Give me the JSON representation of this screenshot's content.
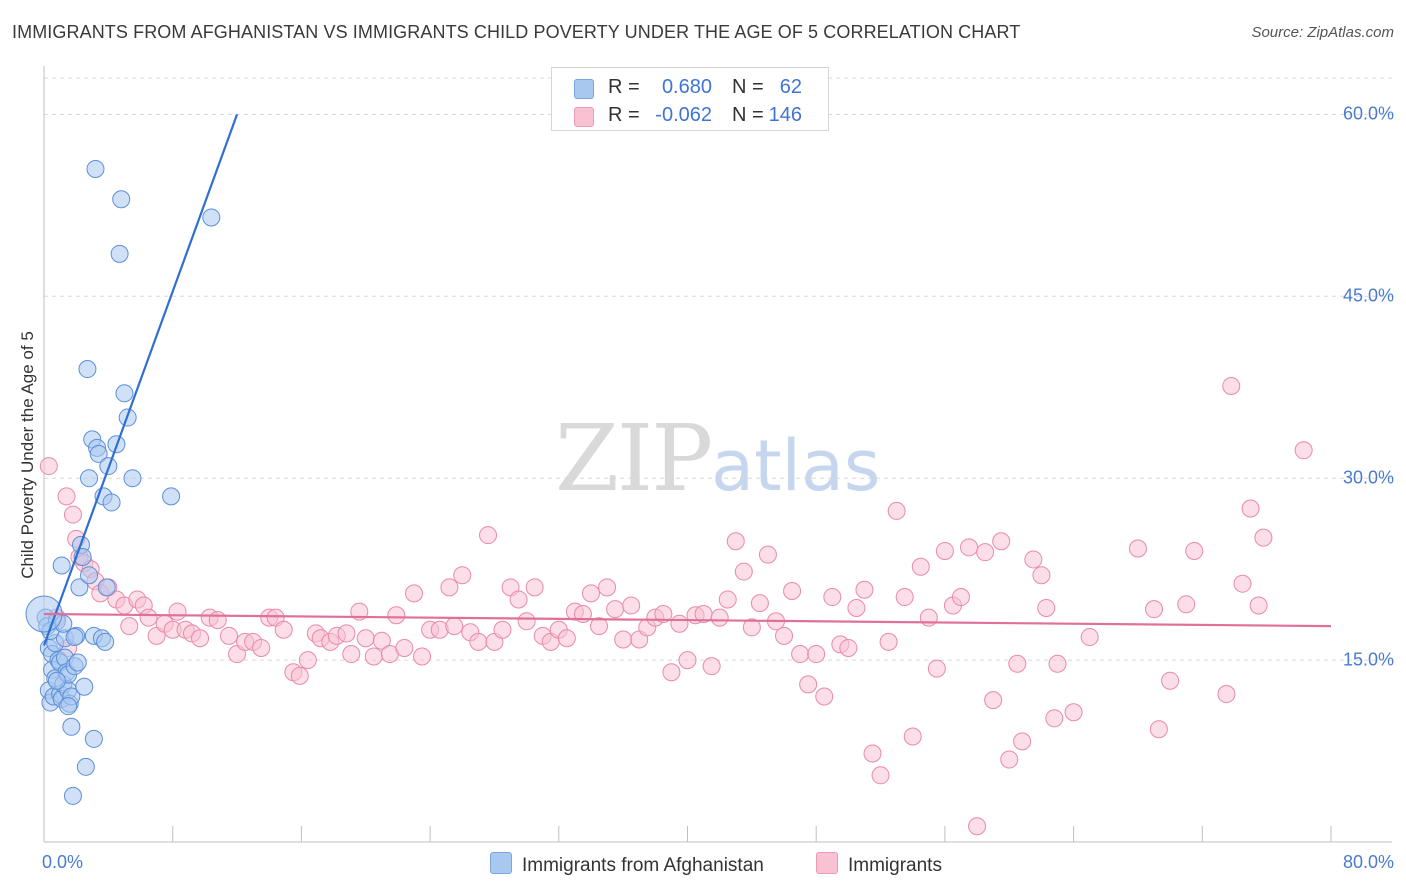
{
  "header": {
    "title": "IMMIGRANTS FROM AFGHANISTAN VS IMMIGRANTS CHILD POVERTY UNDER THE AGE OF 5 CORRELATION CHART",
    "source": "Source: ZipAtlas.com"
  },
  "watermark": {
    "zip": "ZIP",
    "atlas": "atlas"
  },
  "legend": {
    "rows": [
      {
        "r_label": "R =",
        "r_value": "0.680",
        "n_label": "N =",
        "n_value": "62",
        "color": "#a9c8f0"
      },
      {
        "r_label": "R =",
        "r_value": "-0.062",
        "n_label": "N =",
        "n_value": "146",
        "color": "#f6b9cc"
      }
    ]
  },
  "colors": {
    "blue_fill": "#a9c8f0",
    "blue_stroke": "#5b8fd8",
    "blue_line": "#2f6fd0",
    "pink_fill": "#f8c2d3",
    "pink_stroke": "#e98aa8",
    "pink_line": "#e0709a",
    "tick_text": "#4a7bd0",
    "grid": "#d8d8d8"
  },
  "chart_data": {
    "type": "scatter",
    "title": "IMMIGRANTS FROM AFGHANISTAN VS IMMIGRANTS CHILD POVERTY UNDER THE AGE OF 5 CORRELATION CHART",
    "xlabel": "",
    "ylabel": "Child Poverty Under the Age of 5",
    "xlim": [
      0,
      80
    ],
    "ylim": [
      0,
      63
    ],
    "y_ticks": [
      15,
      30,
      45,
      60
    ],
    "y_tick_labels": [
      "15.0%",
      "30.0%",
      "45.0%",
      "60.0%"
    ],
    "x_tick_labels": [
      "0.0%",
      "80.0%"
    ],
    "grid": true,
    "series": [
      {
        "name": "Immigrants from Afghanistan",
        "color": "blue",
        "trend": {
          "x0": 0.0,
          "y0": 16.2,
          "x1": 12.0,
          "y1": 60.0
        },
        "points": [
          [
            0.1,
            18.5
          ],
          [
            0.2,
            17.8
          ],
          [
            0.3,
            16.0
          ],
          [
            0.3,
            12.5
          ],
          [
            0.4,
            11.5
          ],
          [
            0.5,
            15.5
          ],
          [
            0.5,
            14.2
          ],
          [
            0.6,
            12.0
          ],
          [
            0.7,
            13.5
          ],
          [
            0.7,
            16.4
          ],
          [
            0.8,
            18.2
          ],
          [
            0.9,
            15.0
          ],
          [
            1.0,
            12.2
          ],
          [
            1.0,
            14.8
          ],
          [
            1.1,
            11.8
          ],
          [
            1.2,
            13.0
          ],
          [
            1.3,
            16.8
          ],
          [
            1.3,
            15.2
          ],
          [
            1.4,
            14.0
          ],
          [
            1.5,
            12.5
          ],
          [
            1.5,
            13.8
          ],
          [
            1.6,
            11.4
          ],
          [
            1.7,
            12.0
          ],
          [
            1.7,
            9.5
          ],
          [
            1.8,
            3.8
          ],
          [
            1.9,
            14.5
          ],
          [
            2.0,
            17.0
          ],
          [
            2.2,
            21.0
          ],
          [
            2.3,
            24.5
          ],
          [
            2.4,
            23.5
          ],
          [
            2.5,
            12.8
          ],
          [
            2.6,
            6.2
          ],
          [
            2.7,
            39.0
          ],
          [
            2.8,
            22.0
          ],
          [
            2.8,
            30.0
          ],
          [
            3.0,
            33.2
          ],
          [
            3.1,
            17.0
          ],
          [
            3.1,
            8.5
          ],
          [
            3.2,
            55.5
          ],
          [
            3.3,
            32.5
          ],
          [
            3.4,
            32.0
          ],
          [
            3.6,
            16.8
          ],
          [
            3.7,
            28.5
          ],
          [
            3.8,
            16.5
          ],
          [
            3.9,
            21.0
          ],
          [
            4.0,
            31.0
          ],
          [
            4.2,
            28.0
          ],
          [
            4.5,
            32.8
          ],
          [
            4.7,
            48.5
          ],
          [
            4.8,
            53.0
          ],
          [
            5.0,
            37.0
          ],
          [
            5.2,
            35.0
          ],
          [
            5.5,
            30.0
          ],
          [
            7.9,
            28.5
          ],
          [
            10.4,
            51.5
          ],
          [
            1.1,
            22.8
          ],
          [
            0.4,
            17.4
          ],
          [
            1.9,
            16.9
          ],
          [
            1.2,
            18.0
          ],
          [
            2.1,
            14.8
          ],
          [
            0.8,
            13.3
          ],
          [
            1.5,
            11.2
          ]
        ],
        "big_point": [
          0.0,
          18.8
        ]
      },
      {
        "name": "Immigrants",
        "color": "pink",
        "trend": {
          "x0": 0.0,
          "y0": 18.8,
          "x1": 80.0,
          "y1": 17.8
        },
        "points": [
          [
            0.3,
            31.0
          ],
          [
            0.8,
            18.5
          ],
          [
            1.4,
            28.5
          ],
          [
            1.5,
            16.0
          ],
          [
            1.8,
            27.0
          ],
          [
            2.0,
            25.0
          ],
          [
            2.2,
            23.5
          ],
          [
            2.5,
            23.0
          ],
          [
            2.9,
            22.5
          ],
          [
            3.2,
            21.5
          ],
          [
            3.5,
            20.5
          ],
          [
            4.0,
            21.0
          ],
          [
            4.5,
            20.0
          ],
          [
            5.0,
            19.5
          ],
          [
            5.3,
            17.8
          ],
          [
            5.8,
            20.0
          ],
          [
            6.2,
            19.5
          ],
          [
            6.5,
            18.5
          ],
          [
            7.0,
            17.0
          ],
          [
            7.5,
            18.0
          ],
          [
            8.0,
            17.5
          ],
          [
            8.3,
            19.0
          ],
          [
            8.8,
            17.5
          ],
          [
            9.2,
            17.2
          ],
          [
            9.7,
            16.8
          ],
          [
            10.3,
            18.5
          ],
          [
            10.8,
            18.3
          ],
          [
            11.5,
            17.0
          ],
          [
            12.0,
            15.5
          ],
          [
            12.5,
            16.5
          ],
          [
            13.0,
            16.5
          ],
          [
            13.5,
            16.0
          ],
          [
            14.0,
            18.5
          ],
          [
            14.4,
            18.5
          ],
          [
            14.9,
            17.5
          ],
          [
            15.5,
            14.0
          ],
          [
            15.9,
            13.7
          ],
          [
            16.4,
            15.0
          ],
          [
            16.9,
            17.2
          ],
          [
            17.2,
            16.8
          ],
          [
            17.8,
            16.5
          ],
          [
            18.2,
            17.0
          ],
          [
            18.8,
            17.2
          ],
          [
            19.1,
            15.5
          ],
          [
            19.6,
            19.0
          ],
          [
            20.0,
            16.8
          ],
          [
            20.5,
            15.3
          ],
          [
            21.0,
            16.6
          ],
          [
            21.5,
            15.5
          ],
          [
            21.9,
            18.7
          ],
          [
            22.4,
            16.0
          ],
          [
            23.0,
            20.5
          ],
          [
            23.5,
            15.3
          ],
          [
            24.0,
            17.5
          ],
          [
            24.6,
            17.5
          ],
          [
            25.2,
            21.0
          ],
          [
            25.5,
            17.8
          ],
          [
            26.0,
            22.0
          ],
          [
            26.5,
            17.3
          ],
          [
            27.0,
            16.5
          ],
          [
            27.6,
            25.3
          ],
          [
            28.0,
            16.5
          ],
          [
            28.5,
            17.5
          ],
          [
            29.0,
            21.0
          ],
          [
            29.5,
            20.0
          ],
          [
            30.0,
            18.2
          ],
          [
            30.5,
            21.0
          ],
          [
            31.0,
            17.0
          ],
          [
            31.5,
            16.5
          ],
          [
            32.0,
            17.5
          ],
          [
            32.5,
            16.8
          ],
          [
            33.0,
            19.0
          ],
          [
            33.5,
            18.8
          ],
          [
            34.0,
            20.5
          ],
          [
            34.5,
            17.8
          ],
          [
            35.0,
            21.0
          ],
          [
            35.5,
            19.2
          ],
          [
            36.0,
            16.7
          ],
          [
            36.5,
            19.5
          ],
          [
            37.0,
            16.7
          ],
          [
            37.5,
            17.7
          ],
          [
            38.0,
            18.5
          ],
          [
            38.5,
            18.8
          ],
          [
            39.0,
            14.0
          ],
          [
            39.5,
            18.0
          ],
          [
            40.0,
            15.0
          ],
          [
            40.5,
            18.7
          ],
          [
            41.0,
            18.8
          ],
          [
            41.5,
            14.5
          ],
          [
            42.0,
            18.5
          ],
          [
            42.5,
            20.0
          ],
          [
            43.0,
            24.8
          ],
          [
            43.5,
            22.3
          ],
          [
            44.0,
            17.7
          ],
          [
            44.5,
            19.7
          ],
          [
            45.0,
            23.7
          ],
          [
            45.5,
            18.2
          ],
          [
            46.0,
            17.0
          ],
          [
            46.5,
            20.7
          ],
          [
            47.0,
            15.5
          ],
          [
            47.5,
            13.0
          ],
          [
            48.0,
            15.5
          ],
          [
            48.5,
            12.0
          ],
          [
            49.0,
            20.2
          ],
          [
            49.5,
            16.3
          ],
          [
            50.0,
            16.0
          ],
          [
            50.5,
            19.3
          ],
          [
            51.0,
            20.8
          ],
          [
            51.5,
            7.3
          ],
          [
            52.0,
            5.5
          ],
          [
            52.5,
            16.5
          ],
          [
            53.0,
            27.3
          ],
          [
            53.5,
            20.2
          ],
          [
            54.0,
            8.7
          ],
          [
            54.5,
            22.7
          ],
          [
            55.0,
            18.5
          ],
          [
            55.5,
            14.3
          ],
          [
            56.0,
            24.0
          ],
          [
            56.5,
            19.5
          ],
          [
            57.0,
            20.2
          ],
          [
            57.5,
            24.3
          ],
          [
            58.0,
            1.3
          ],
          [
            58.5,
            23.9
          ],
          [
            59.0,
            11.7
          ],
          [
            59.5,
            24.8
          ],
          [
            60.0,
            6.8
          ],
          [
            60.5,
            14.7
          ],
          [
            60.8,
            8.3
          ],
          [
            61.5,
            23.3
          ],
          [
            62.0,
            22.0
          ],
          [
            62.3,
            19.3
          ],
          [
            62.8,
            10.2
          ],
          [
            63.0,
            14.7
          ],
          [
            64.0,
            10.7
          ],
          [
            65.0,
            16.9
          ],
          [
            68.0,
            24.2
          ],
          [
            69.0,
            19.2
          ],
          [
            69.3,
            9.3
          ],
          [
            70.0,
            13.3
          ],
          [
            71.0,
            19.6
          ],
          [
            71.5,
            24.0
          ],
          [
            73.5,
            12.2
          ],
          [
            73.8,
            37.6
          ],
          [
            74.5,
            21.3
          ],
          [
            75.0,
            27.5
          ],
          [
            75.5,
            19.5
          ],
          [
            75.8,
            25.1
          ],
          [
            78.3,
            32.3
          ]
        ]
      }
    ]
  },
  "bottom_legend": {
    "items": [
      {
        "label": "Immigrants from Afghanistan",
        "color": "#a9c8f0"
      },
      {
        "label": "Immigrants",
        "color": "#f8c2d3"
      }
    ]
  }
}
